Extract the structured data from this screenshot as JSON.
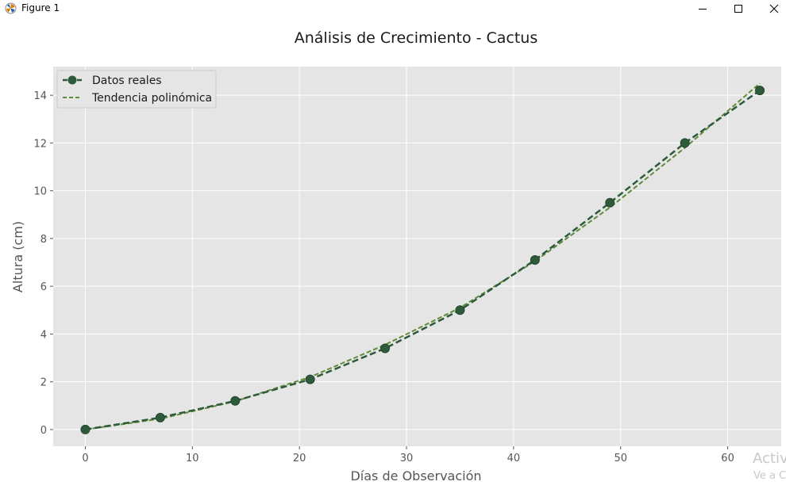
{
  "window": {
    "title": "Figure 1"
  },
  "chart_data": {
    "type": "line",
    "title": "Análisis de Crecimiento - Cactus",
    "xlabel": "Días de Observación",
    "ylabel": "Altura (cm)",
    "xlim": [
      -3,
      65
    ],
    "ylim": [
      -0.7,
      15.2
    ],
    "xticks": [
      0,
      10,
      20,
      30,
      40,
      50,
      60
    ],
    "yticks": [
      0,
      2,
      4,
      6,
      8,
      10,
      12,
      14
    ],
    "grid": true,
    "legend_position": "upper-left",
    "series": [
      {
        "name": "Datos reales",
        "style": "dashed-marker",
        "color": "#2d5a3a",
        "x": [
          0,
          7,
          14,
          21,
          28,
          35,
          42,
          49,
          56,
          63
        ],
        "y": [
          0,
          0.5,
          1.2,
          2.1,
          3.4,
          5.0,
          7.1,
          9.5,
          12.0,
          14.2
        ]
      },
      {
        "name": "Tendencia polinómica",
        "style": "dashed",
        "color": "#5f8c3a",
        "x": [
          0,
          7,
          14,
          21,
          28,
          35,
          42,
          49,
          56,
          63
        ],
        "y": [
          0.0,
          0.45,
          1.18,
          2.2,
          3.55,
          5.1,
          7.05,
          9.3,
          11.8,
          14.5
        ]
      }
    ]
  },
  "watermark": {
    "line1": "Activ",
    "line2": "Ve a C"
  }
}
